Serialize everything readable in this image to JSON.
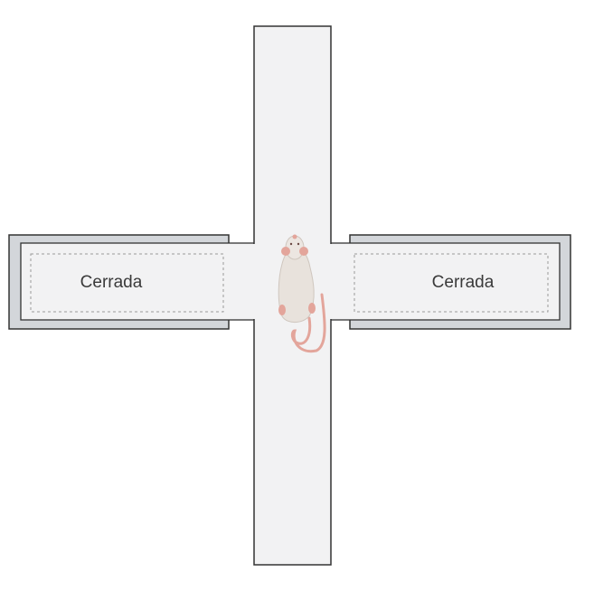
{
  "maze": {
    "closed_arm_left_label": "Cerrada",
    "closed_arm_right_label": "Cerrada"
  },
  "colors": {
    "background": "#ffffff",
    "arm_fill": "#f2f2f3",
    "wall_fill": "#d3d6da",
    "outline": "#333333",
    "dashed_zone": "#9a9a9a",
    "mouse_body": "#e8e2dc",
    "mouse_tail": "#e3a59b"
  }
}
